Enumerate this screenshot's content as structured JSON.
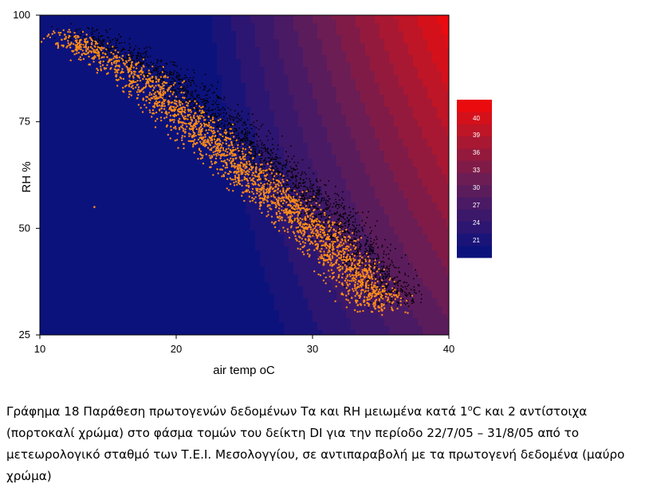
{
  "chart_data": {
    "type": "scatter",
    "subtype": "scatter over filled contour map",
    "title": "",
    "xlabel": "air temp oC",
    "ylabel": "RH %",
    "xlim": [
      10,
      40
    ],
    "ylim": [
      25,
      100
    ],
    "x_ticks": [
      "10",
      "20",
      "30",
      "40"
    ],
    "y_ticks": [
      "25",
      "50",
      "75",
      "100"
    ],
    "grid": false,
    "legend": {
      "placement": "right",
      "type": "colorbar",
      "labels": [
        "21",
        "24",
        "27",
        "30",
        "33",
        "36",
        "39",
        "40"
      ]
    },
    "contour": {
      "index": "DI",
      "levels": [
        21,
        22.5,
        24,
        25.5,
        27,
        28.5,
        30,
        31.5,
        33,
        34.5,
        36,
        37.5,
        39,
        40
      ],
      "colors": [
        "#0c127c",
        "#1a1478",
        "#2c1671",
        "#3c186a",
        "#4a1a64",
        "#5b1c5c",
        "#6c1d54",
        "#801b48",
        "#941a3d",
        "#a81832",
        "#be1527",
        "#d4111b",
        "#ea0b0f",
        "#ff0000"
      ]
    },
    "series": [
      {
        "name": "",
        "color": "#ff8c1a",
        "marker": "dot",
        "band": {
          "centerline": [
            [
              12,
              95
            ],
            [
              18,
              84
            ],
            [
              22,
              72
            ],
            [
              26,
              61
            ],
            [
              30,
              50
            ],
            [
              33,
              40
            ],
            [
              35,
              31
            ]
          ],
          "half_width_x": 2.6
        }
      },
      {
        "name": "",
        "color": "#000000",
        "marker": "dot",
        "band": {
          "centerline": [
            [
              13,
              96
            ],
            [
              19,
              86
            ],
            [
              23,
              75
            ],
            [
              27,
              65
            ],
            [
              31,
              53
            ],
            [
              34,
              42
            ],
            [
              36,
              33
            ]
          ],
          "half_width_x": 2.9
        }
      }
    ],
    "outliers": [
      {
        "x": 14,
        "y": 55
      }
    ]
  },
  "caption": {
    "part1": "Γράφημα 18 Παράθεση πρωτογενών δεδομένων Τα και RH μειωμένα κατά 1",
    "sup": "ο",
    "part2": "C και 2 αντίστοιχα (πορτοκαλί χρώμα) στο φάσμα τομών του δείκτη DI για την περίοδο 22/7/05 – 31/8/05 από το μετεωρολογικό σταθμό των Τ.Ε.Ι. Μεσολογγίου, σε αντιπαραβολή με τα πρωτογενή δεδομένα (μαύρο χρώμα)"
  }
}
